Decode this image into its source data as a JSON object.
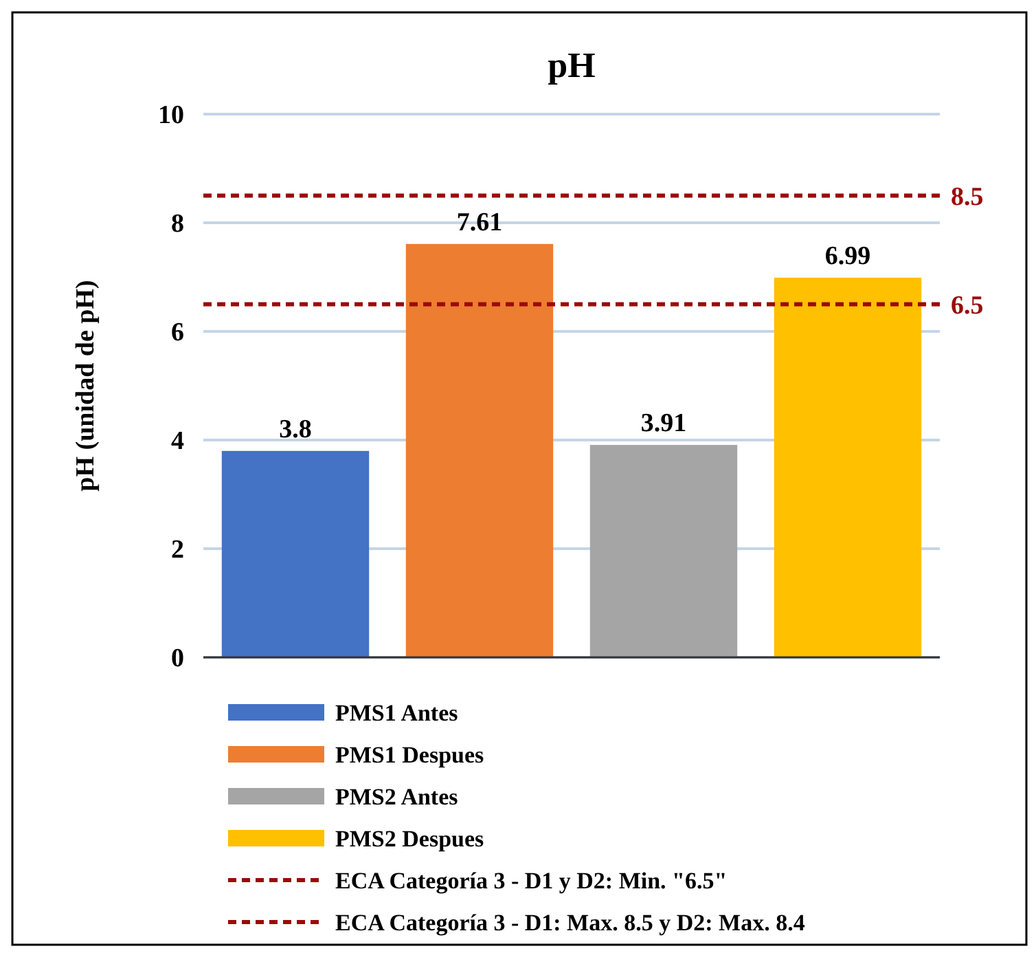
{
  "chart_data": {
    "type": "bar",
    "title": "pH",
    "ylabel": "pH (unidad de pH)",
    "categories": [
      null,
      null,
      null,
      null
    ],
    "series": [
      {
        "name": "PMS1 Antes",
        "color": "#4472c4",
        "values": [
          3.8,
          null,
          null,
          null
        ]
      },
      {
        "name": "PMS1 Despues",
        "color": "#ed7d31",
        "values": [
          null,
          7.61,
          null,
          null
        ]
      },
      {
        "name": "PMS2 Antes",
        "color": "#a5a5a5",
        "values": [
          null,
          null,
          3.91,
          null
        ]
      },
      {
        "name": "PMS2 Despues",
        "color": "#ffc000",
        "values": [
          null,
          null,
          null,
          6.99
        ]
      }
    ],
    "ylim": [
      0,
      10
    ],
    "yticks": [
      0,
      2,
      4,
      6,
      8,
      10
    ],
    "grid": "y",
    "data_labels": true,
    "legend": "bottom",
    "ref_lines": [
      {
        "axis": "y",
        "value": 6.5,
        "label": "6.5",
        "color": "#9b0a0a",
        "line_style": "dashed"
      },
      {
        "axis": "y",
        "value": 8.5,
        "label": "8.5",
        "color": "#9b0a0a",
        "line_style": "dashed"
      }
    ],
    "annotations": [
      "ECA Categoría 3 - D1 y D2: Min. \"6.5\"",
      "ECA Categoría 3 - D1: Max. 8.5 y D2: Max. 8.4"
    ]
  }
}
